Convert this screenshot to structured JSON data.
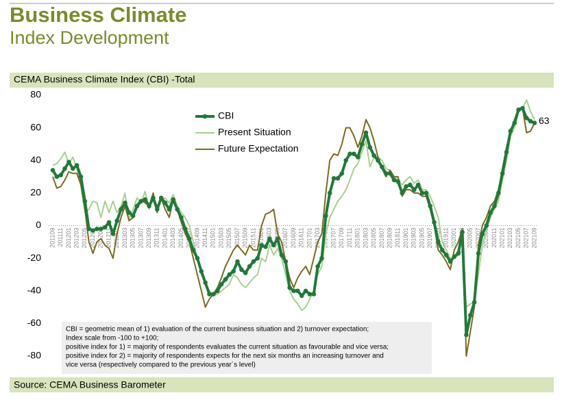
{
  "chart_data": {
    "type": "line",
    "heading": "Business Climate",
    "subheading": "Index Development",
    "title": "CEMA Business Climate Index (CBI) -Total",
    "source": "Source: CEMA Business Barometer",
    "annotation": [
      "CBI = geometric mean of 1) evaluation of the current business situation and 2) turnover expectation;",
      "Index scale from -100 to +100;",
      "positive index for 1) = majority of respondents evaluates the current situation as favourable and vice versa;",
      "positive index for 2) = majority of respondents expects for the next six months an increasing turnover and",
      "vice versa (respectively compared to the previous year´s level)"
    ],
    "categories": [
      "201109",
      null,
      "201111",
      null,
      "201201",
      null,
      "201203",
      null,
      "201205",
      null,
      "201207",
      null,
      "201209",
      null,
      "201211",
      null,
      "201301",
      null,
      "201303",
      null,
      "201305",
      null,
      "201307",
      null,
      "201309",
      null,
      "201311",
      null,
      "201401",
      null,
      "201403",
      null,
      "201405",
      null,
      "201407",
      null,
      "201409",
      null,
      "201411",
      null,
      "201501",
      null,
      "201503",
      null,
      "201505",
      null,
      "201507",
      null,
      "201509",
      null,
      "201511",
      null,
      "201601",
      null,
      "201603",
      null,
      "201605",
      null,
      "201607",
      null,
      "201609",
      null,
      "201611",
      null,
      "201701",
      null,
      "201703",
      null,
      "201705",
      null,
      "201707",
      null,
      "201709",
      null,
      "201711",
      null,
      "201801",
      null,
      "201803",
      null,
      "201805",
      null,
      "201807",
      null,
      "201809",
      null,
      "201811",
      null,
      "201901",
      null,
      "201903",
      null,
      "201905",
      null,
      "201907",
      null,
      "201909",
      null,
      "201911",
      null,
      "202001",
      null,
      "202003",
      null,
      "202005",
      null,
      "202007",
      null,
      "202009",
      null,
      "202011",
      null,
      "202101",
      null,
      "202103",
      null,
      "202105",
      null,
      "202107",
      null,
      "202109"
    ],
    "series": [
      {
        "name": "CBI",
        "color": "#1f7a3a",
        "markers": true,
        "values": [
          34,
          30,
          31,
          35,
          39,
          35,
          37,
          30,
          15,
          -2,
          -3,
          -2,
          -2,
          -1,
          2,
          -5,
          3,
          10,
          14,
          8,
          6,
          12,
          15,
          16,
          12,
          17,
          10,
          17,
          14,
          10,
          16,
          10,
          5,
          -2,
          -8,
          -15,
          -20,
          -28,
          -35,
          -42,
          -42,
          -40,
          -36,
          -33,
          -30,
          -28,
          -22,
          -27,
          -29,
          -25,
          -22,
          -20,
          -12,
          -13,
          -8,
          -12,
          -8,
          -18,
          -22,
          -38,
          -40,
          -40,
          -43,
          -40,
          -42,
          -42,
          -25,
          -20,
          6,
          20,
          29,
          29,
          32,
          40,
          44,
          44,
          42,
          50,
          57,
          48,
          43,
          40,
          36,
          32,
          32,
          28,
          27,
          20,
          24,
          25,
          22,
          25,
          20,
          20,
          12,
          2,
          -10,
          -15,
          -18,
          -22,
          -19,
          -17,
          -4,
          -67,
          -55,
          -47,
          -17,
          -5,
          0,
          8,
          12,
          20,
          32,
          45,
          58,
          63,
          71,
          72,
          66,
          64,
          63
        ]
      },
      {
        "name": "Present Situation",
        "color": "#a8d08d",
        "markers": false,
        "values": [
          37,
          38,
          41,
          45,
          38,
          42,
          35,
          25,
          8,
          10,
          15,
          14,
          5,
          15,
          8,
          15,
          8,
          12,
          20,
          4,
          10,
          17,
          14,
          21,
          10,
          18,
          12,
          16,
          17,
          14,
          19,
          12,
          8,
          5,
          0,
          -10,
          -20,
          -30,
          -35,
          -40,
          -43,
          -42,
          -40,
          -38,
          -36,
          -30,
          -32,
          -36,
          -38,
          -35,
          -32,
          -30,
          -20,
          -22,
          -12,
          -18,
          -14,
          -20,
          -30,
          -40,
          -45,
          -48,
          -52,
          -50,
          -45,
          -40,
          -30,
          -25,
          -5,
          5,
          10,
          15,
          18,
          22,
          28,
          35,
          38,
          45,
          52,
          36,
          42,
          42,
          40,
          35,
          34,
          30,
          28,
          25,
          28,
          30,
          26,
          28,
          22,
          22,
          18,
          12,
          5,
          -10,
          -15,
          -20,
          -20,
          -18,
          -15,
          -50,
          -48,
          -47,
          -30,
          -12,
          -3,
          5,
          10,
          15,
          28,
          40,
          55,
          60,
          70,
          72,
          77,
          70,
          65
        ]
      },
      {
        "name": "Future Expectation",
        "color": "#7a6a1f",
        "markers": false,
        "values": [
          30,
          23,
          24,
          28,
          33,
          32,
          32,
          25,
          10,
          -10,
          -17,
          -10,
          -8,
          -12,
          -14,
          -20,
          -5,
          5,
          12,
          3,
          5,
          13,
          16,
          14,
          12,
          20,
          8,
          17,
          10,
          5,
          16,
          10,
          2,
          -5,
          -10,
          -20,
          -30,
          -40,
          -50,
          -45,
          -42,
          -38,
          -32,
          -25,
          -20,
          -15,
          -12,
          -15,
          -18,
          -12,
          -15,
          -15,
          0,
          7,
          8,
          10,
          -5,
          -10,
          -22,
          -32,
          -38,
          -32,
          -28,
          -25,
          -30,
          -20,
          -10,
          -5,
          20,
          40,
          44,
          43,
          50,
          60,
          60,
          55,
          48,
          55,
          65,
          60,
          52,
          42,
          35,
          30,
          34,
          30,
          30,
          18,
          22,
          22,
          20,
          20,
          18,
          18,
          10,
          0,
          -15,
          -18,
          -22,
          -27,
          -15,
          -10,
          -2,
          -80,
          -65,
          -50,
          -12,
          0,
          5,
          12,
          15,
          22,
          35,
          48,
          58,
          65,
          72,
          72,
          57,
          58,
          63
        ]
      }
    ],
    "ylim": [
      -80,
      80
    ],
    "yticks": [
      -80,
      -60,
      -40,
      -20,
      0,
      20,
      40,
      60,
      80
    ],
    "grid": false
  }
}
